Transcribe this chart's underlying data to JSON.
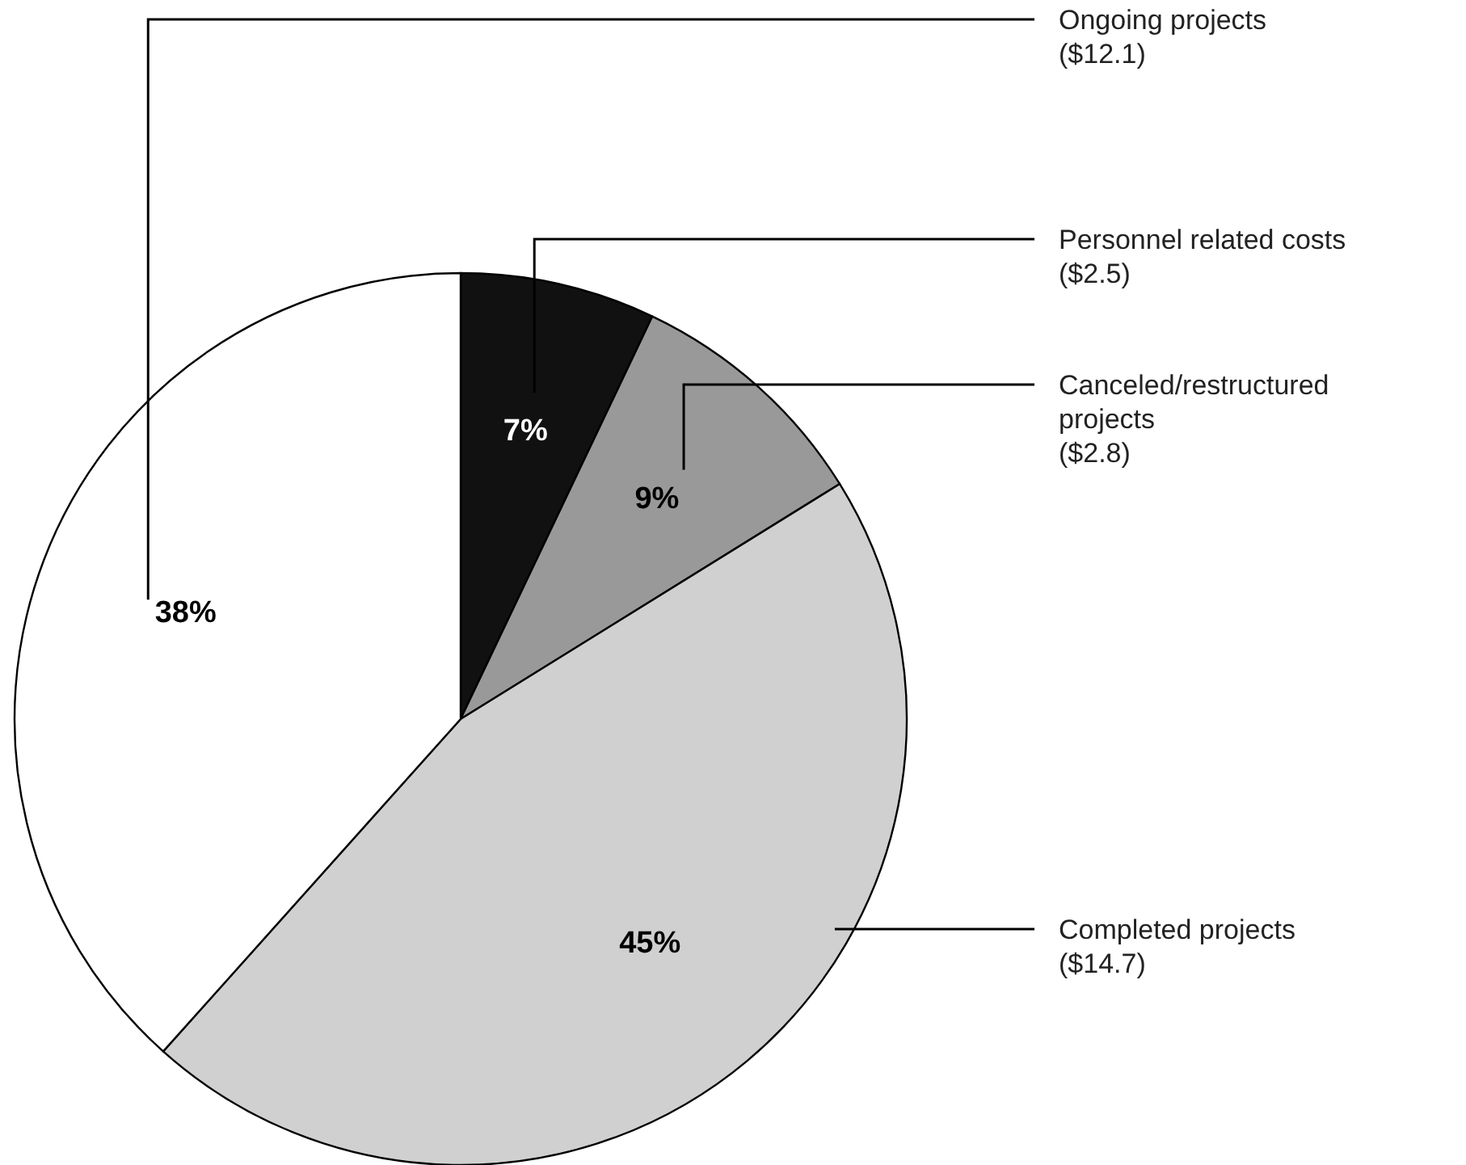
{
  "chart_data": {
    "type": "pie",
    "categories": [
      "Personnel related costs\n($2.5)",
      "Canceled/restructured\nprojects\n($2.8)",
      "Completed projects\n($14.7)",
      "Ongoing projects\n($12.1)"
    ],
    "values": [
      7,
      9,
      45,
      38
    ],
    "value_labels": [
      "7%",
      "9%",
      "45%",
      "38%"
    ],
    "colors": [
      "#111111",
      "#999999",
      "#d0d0d0",
      "#ffffff"
    ]
  }
}
